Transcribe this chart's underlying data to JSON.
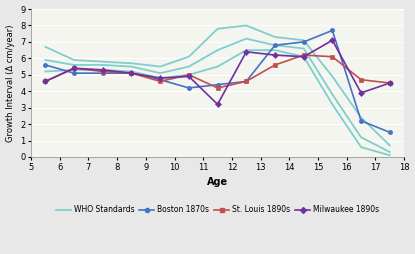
{
  "who_x": [
    5.5,
    6.5,
    7.5,
    8.5,
    9.5,
    10.5,
    11.5,
    12.5,
    13.5,
    14.5,
    15.5,
    16.5,
    17.5
  ],
  "who_y1": [
    6.7,
    5.9,
    5.8,
    5.7,
    5.5,
    6.1,
    7.8,
    8.0,
    7.3,
    7.1,
    4.9,
    2.4,
    0.7
  ],
  "who_y2": [
    5.9,
    5.6,
    5.6,
    5.5,
    5.1,
    5.5,
    6.5,
    7.2,
    6.8,
    6.6,
    3.8,
    1.2,
    0.3
  ],
  "who_y3": [
    5.2,
    5.3,
    5.3,
    5.2,
    4.8,
    5.0,
    5.5,
    6.5,
    6.5,
    6.1,
    3.2,
    0.6,
    0.1
  ],
  "boston_x": [
    5.5,
    6.5,
    7.5,
    8.5,
    9.5,
    10.5,
    11.5,
    12.5,
    13.5,
    14.5,
    15.5,
    16.5,
    17.5
  ],
  "boston_y": [
    5.6,
    5.1,
    5.1,
    5.1,
    4.7,
    4.2,
    4.4,
    4.6,
    6.8,
    7.0,
    7.7,
    2.2,
    1.5
  ],
  "stlouis_x": [
    5.5,
    6.5,
    7.5,
    8.5,
    9.5,
    10.5,
    11.5,
    12.5,
    13.5,
    14.5,
    15.5,
    16.5,
    17.5
  ],
  "stlouis_y": [
    4.6,
    5.4,
    5.2,
    5.1,
    4.6,
    5.0,
    4.2,
    4.6,
    5.6,
    6.2,
    6.1,
    4.7,
    4.5
  ],
  "milwaukee_x": [
    5.5,
    6.5,
    7.5,
    8.5,
    9.5,
    10.5,
    11.5,
    12.5,
    13.5,
    14.5,
    15.5,
    16.5,
    17.5
  ],
  "milwaukee_y": [
    4.6,
    5.4,
    5.3,
    5.1,
    4.8,
    4.9,
    3.2,
    6.4,
    6.2,
    6.1,
    7.1,
    3.9,
    4.5
  ],
  "who_color": "#7ecece",
  "boston_color": "#4472c4",
  "stlouis_color": "#c0504d",
  "milwaukee_color": "#7030a0",
  "xlabel": "Age",
  "ylabel": "Growth Interval (Δ cm/year)",
  "ylim": [
    0,
    9
  ],
  "xlim": [
    5,
    18
  ],
  "yticks": [
    0,
    1,
    2,
    3,
    4,
    5,
    6,
    7,
    8,
    9
  ],
  "xticks": [
    5,
    6,
    7,
    8,
    9,
    10,
    11,
    12,
    13,
    14,
    15,
    16,
    17,
    18
  ],
  "bg_color": "#e8e8e8",
  "plot_bg_color": "#f5f5f0"
}
